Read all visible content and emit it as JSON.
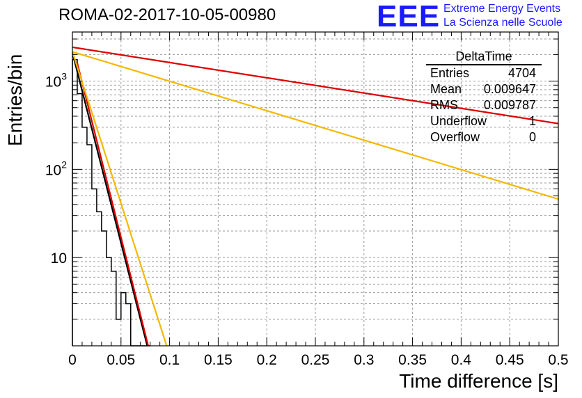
{
  "chart_data": {
    "type": "line",
    "title": "ROMA-02-2017-10-05-00980",
    "xlabel": "Time difference [s]",
    "ylabel": "Entries/bin",
    "xlim": [
      0,
      0.5
    ],
    "ylim": [
      1,
      3600
    ],
    "yscale": "log",
    "grid": true,
    "x_ticks": [
      0,
      0.05,
      0.1,
      0.15,
      0.2,
      0.25,
      0.3,
      0.35,
      0.4,
      0.45,
      0.5
    ],
    "x_tick_labels": [
      "0",
      "0.05",
      "0.1",
      "0.15",
      "0.2",
      "0.25",
      "0.3",
      "0.35",
      "0.4",
      "0.45",
      "0.5"
    ],
    "y_ticks": [
      10,
      100,
      1000
    ],
    "y_tick_labels": [
      {
        "base": "10",
        "exp": ""
      },
      {
        "base": "10",
        "exp": "2"
      },
      {
        "base": "10",
        "exp": "3"
      }
    ],
    "histogram": {
      "name": "DeltaTime",
      "bin_width": 0.005,
      "values": [
        1750,
        720,
        300,
        190,
        60,
        33,
        20,
        10,
        7,
        2,
        4,
        3,
        1,
        1,
        1,
        1
      ]
    },
    "series": [
      {
        "name": "fit-black",
        "color": "#000000",
        "x": [
          0,
          0.077
        ],
        "y": [
          2100,
          1.0
        ]
      },
      {
        "name": "fit-red-steep",
        "color": "#dd0000",
        "x": [
          0.005,
          0.078
        ],
        "y": [
          1600,
          1.0
        ]
      },
      {
        "name": "fit-red-shallow",
        "color": "#dd0000",
        "x": [
          0,
          0.5
        ],
        "y": [
          2420,
          330
        ]
      },
      {
        "name": "fit-orange-steep",
        "color": "#f5b800",
        "x": [
          0,
          0.097
        ],
        "y": [
          2150,
          1.0
        ]
      },
      {
        "name": "fit-orange-shallow",
        "color": "#f5b800",
        "x": [
          0,
          0.5
        ],
        "y": [
          2150,
          46
        ]
      }
    ]
  },
  "header": {
    "title": "ROMA-02-2017-10-05-00980",
    "logo_text": "EEE",
    "logo_line1": "Extreme Energy Events",
    "logo_line2": "La Scienza nelle Scuole"
  },
  "stats": {
    "title": "DeltaTime",
    "rows": [
      {
        "label": "Entries",
        "value": "4704"
      },
      {
        "label": "Mean",
        "value": "0.009647"
      },
      {
        "label": "RMS",
        "value": "0.009787"
      },
      {
        "label": "Underflow",
        "value": "1"
      },
      {
        "label": "Overflow",
        "value": "0"
      }
    ]
  },
  "colors": {
    "histogram": "#000000",
    "red": "#dd0000",
    "orange": "#f5b800",
    "grid": "#9a9a9a",
    "logo": "#1a1aff"
  }
}
